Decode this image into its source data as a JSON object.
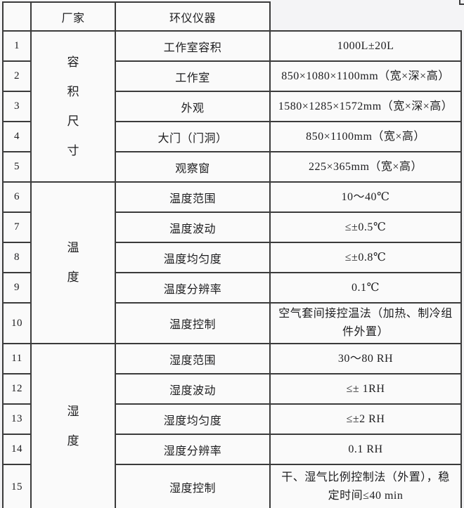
{
  "theme": {
    "page_background": "#f2f2f4",
    "cell_background": "#fafafa",
    "border_color": "#3b3b3b",
    "text_color": "#1d1d1f"
  },
  "table": {
    "header": {
      "index": "",
      "vendor": "厂家",
      "brand": "环仪仪器",
      "value": ""
    },
    "groups": [
      {
        "name": "容积尺寸",
        "label": "容\n积\n尺\n寸",
        "row_span": "1-5"
      },
      {
        "name": "温度",
        "label": "温\n度",
        "row_span": "6-10"
      },
      {
        "name": "湿度",
        "label": "湿\n度",
        "row_span": "11-15"
      }
    ],
    "rows": [
      {
        "num": "1",
        "param": "工作室容积",
        "value": "1000L±20L"
      },
      {
        "num": "2",
        "param": "工作室",
        "value": "850×1080×1100mm（宽×深×高）"
      },
      {
        "num": "3",
        "param": "外观",
        "value": "1580×1285×1572mm（宽×深×高）"
      },
      {
        "num": "4",
        "param": "大门（门洞）",
        "value": "850×1100mm（宽×高）"
      },
      {
        "num": "5",
        "param": "观察窗",
        "value": "225×365mm（宽×高）"
      },
      {
        "num": "6",
        "param": "温度范围",
        "value": "10～40℃"
      },
      {
        "num": "7",
        "param": "温度波动",
        "value": "≤±0.5℃"
      },
      {
        "num": "8",
        "param": "温度均匀度",
        "value": "≤±0.8℃"
      },
      {
        "num": "9",
        "param": "温度分辨率",
        "value": "0.1℃"
      },
      {
        "num": "10",
        "param": "温度控制",
        "value": "空气套间接控温法（加热、制冷组件外置）"
      },
      {
        "num": "11",
        "param": "湿度范围",
        "value": "30～80  RH"
      },
      {
        "num": "12",
        "param": "湿度波动",
        "value": "≤± 1RH"
      },
      {
        "num": "13",
        "param": "湿度均匀度",
        "value": "≤±2 RH"
      },
      {
        "num": "14",
        "param": "湿度分辨率",
        "value": "0.1 RH"
      },
      {
        "num": "15",
        "param": "湿度控制",
        "value": "干、湿气比例控制法（外置），稳定时间≤40 min"
      }
    ]
  }
}
